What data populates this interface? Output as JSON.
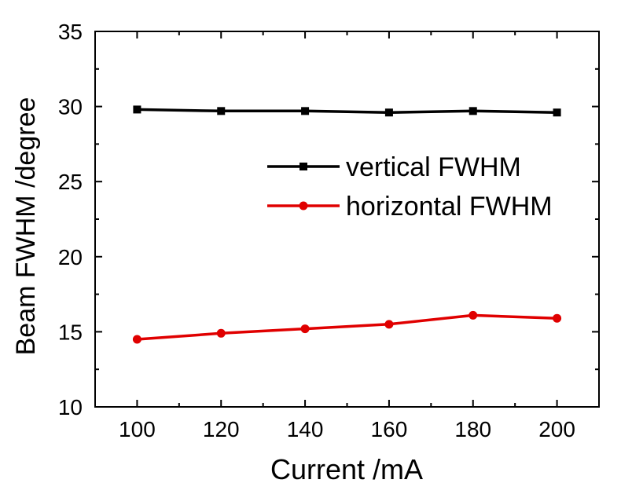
{
  "chart_data": {
    "type": "line",
    "xlabel": "Current /mA",
    "ylabel": "Beam FWHM /degree",
    "xlim": [
      90,
      210
    ],
    "ylim": [
      10,
      35
    ],
    "x_ticks": [
      100,
      120,
      140,
      160,
      180,
      200
    ],
    "y_ticks": [
      10,
      15,
      20,
      25,
      30,
      35
    ],
    "grid": false,
    "legend_position": "right-middle",
    "series": [
      {
        "name": "vertical FWHM",
        "color": "#000000",
        "marker": "square",
        "x": [
          100,
          120,
          140,
          160,
          180,
          200
        ],
        "y": [
          29.8,
          29.7,
          29.7,
          29.6,
          29.7,
          29.6
        ]
      },
      {
        "name": "horizontal FWHM",
        "color": "#e00000",
        "marker": "circle",
        "x": [
          100,
          120,
          140,
          160,
          180,
          200
        ],
        "y": [
          14.5,
          14.9,
          15.2,
          15.5,
          16.1,
          15.9
        ]
      }
    ]
  }
}
